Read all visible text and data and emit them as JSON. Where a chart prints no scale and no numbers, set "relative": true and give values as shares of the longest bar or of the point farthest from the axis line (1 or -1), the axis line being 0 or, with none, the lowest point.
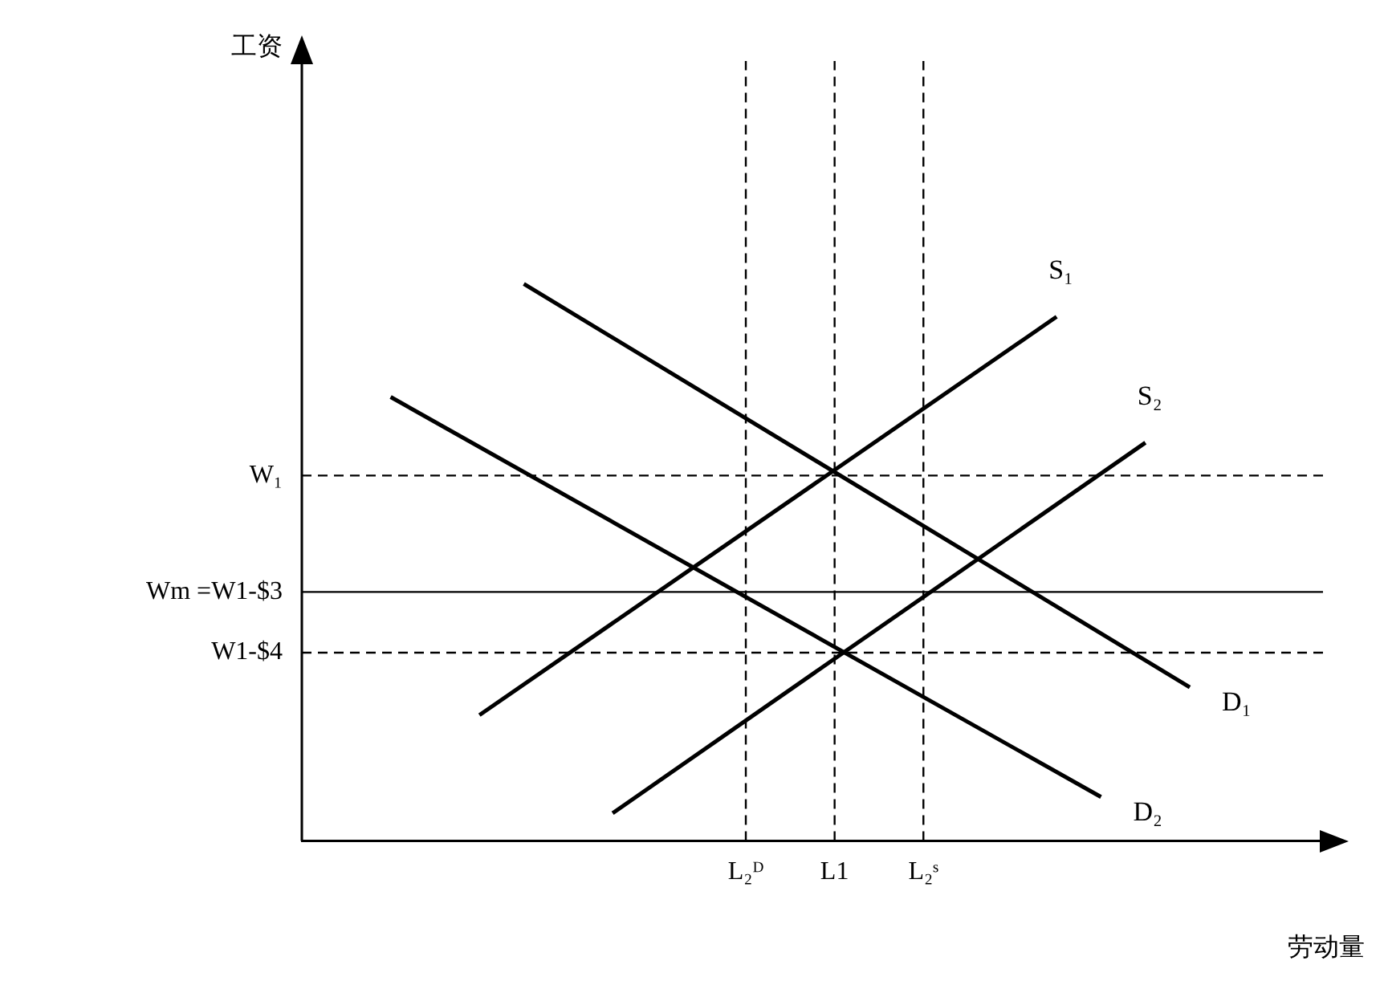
{
  "chart_data": {
    "type": "line",
    "relative": true,
    "tick_labels": "x",
    "xlabel": "劳动量",
    "annotations": [
      "工资"
    ],
    "grid": false,
    "legend": false,
    "marker": "none",
    "line_style": "solid",
    "categories": [
      null,
      null,
      null,
      null,
      null,
      null,
      null,
      null,
      null,
      null,
      "L₂ᴰ",
      null,
      "L1",
      null,
      "L₂ˢ",
      null,
      null,
      null,
      null,
      null,
      null,
      null,
      null,
      null
    ],
    "series": [
      {
        "name": "D₁",
        "color": "#000000",
        "values": [
          null,
          null,
          null,
          null,
          null,
          1.0,
          null,
          null,
          null,
          null,
          null,
          null,
          null,
          null,
          null,
          null,
          null,
          null,
          null,
          null,
          0.276,
          null,
          null,
          null
        ]
      },
      {
        "name": "D₂",
        "color": "#000000",
        "values": [
          null,
          null,
          0.797,
          null,
          null,
          null,
          null,
          null,
          null,
          null,
          null,
          null,
          null,
          null,
          null,
          null,
          null,
          null,
          0.079,
          null,
          null,
          null,
          null,
          null
        ]
      },
      {
        "name": "S₁",
        "color": "#000000",
        "values": [
          null,
          null,
          null,
          null,
          0.226,
          null,
          null,
          null,
          null,
          null,
          null,
          null,
          null,
          null,
          null,
          null,
          null,
          0.941,
          null,
          null,
          null,
          null,
          null,
          null
        ]
      },
      {
        "name": "S₂",
        "color": "#000000",
        "values": [
          null,
          null,
          null,
          null,
          null,
          null,
          null,
          0.05,
          null,
          null,
          null,
          null,
          null,
          null,
          null,
          null,
          null,
          null,
          null,
          0.715,
          null,
          null,
          null,
          null
        ]
      }
    ],
    "ref_lines": [
      {
        "axis": "y",
        "value": 0.656,
        "label": "W₁",
        "line_style": "dashed",
        "color": "#000000"
      },
      {
        "axis": "y",
        "value": 0.447,
        "label": "Wm =W1-$3",
        "line_style": "solid",
        "color": "#000000"
      },
      {
        "axis": "y",
        "value": 0.338,
        "label": "W1-$4",
        "line_style": "dashed",
        "color": "#000000"
      },
      {
        "axis": "x",
        "value": "L₂ᴰ",
        "line_style": "dashed",
        "color": "#000000"
      },
      {
        "axis": "x",
        "value": "L1",
        "line_style": "dashed",
        "color": "#000000"
      },
      {
        "axis": "x",
        "value": "L₂ˢ",
        "line_style": "dashed",
        "color": "#000000"
      }
    ]
  }
}
